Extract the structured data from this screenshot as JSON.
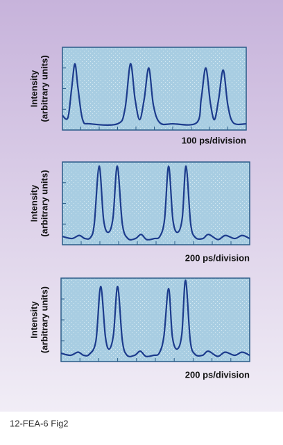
{
  "chart_data": [
    {
      "type": "line",
      "y_label": [
        "Intensity",
        "(arbitrary units)"
      ],
      "x_label": "100 ps/division",
      "color": "#1c3b8c",
      "xlim": [
        0,
        10
      ],
      "ylim": [
        0,
        4
      ],
      "x": [
        0,
        0.3,
        0.5,
        0.68,
        0.85,
        1.1,
        1.5,
        3.0,
        3.4,
        3.7,
        3.95,
        4.2,
        4.45,
        4.7,
        4.95,
        5.3,
        6,
        7.3,
        7.55,
        7.8,
        8.05,
        8.27,
        8.5,
        8.75,
        9,
        9.3,
        10
      ],
      "values": [
        0.7,
        0.6,
        2.0,
        3.2,
        2.0,
        0.5,
        0.3,
        0.3,
        1.0,
        3.2,
        1.5,
        0.5,
        1.5,
        3.0,
        1.2,
        0.35,
        0.3,
        0.35,
        1.5,
        3.0,
        1.3,
        0.5,
        1.5,
        2.9,
        1.2,
        0.35,
        0.3
      ]
    },
    {
      "type": "line",
      "y_label": [
        "Intensity",
        "(arbitrary units)"
      ],
      "x_label": "200 ps/division",
      "color": "#1c3b8c",
      "xlim": [
        0,
        10
      ],
      "ylim": [
        0,
        4
      ],
      "x": [
        0,
        0.5,
        0.9,
        1.2,
        1.5,
        1.7,
        1.96,
        2.2,
        2.45,
        2.7,
        2.93,
        3.2,
        3.5,
        3.9,
        4.2,
        4.5,
        4.9,
        5.2,
        5.45,
        5.67,
        5.9,
        6.15,
        6.4,
        6.6,
        6.85,
        7.1,
        7.5,
        7.8,
        8.3,
        8.7,
        9.2,
        9.6,
        10
      ],
      "values": [
        0.4,
        0.3,
        0.45,
        0.3,
        0.35,
        1.0,
        3.8,
        1.2,
        0.6,
        1.3,
        3.8,
        1.0,
        0.3,
        0.3,
        0.5,
        0.25,
        0.3,
        0.4,
        1.2,
        3.8,
        1.2,
        0.6,
        1.3,
        3.8,
        1.0,
        0.35,
        0.3,
        0.5,
        0.25,
        0.45,
        0.3,
        0.45,
        0.3
      ]
    },
    {
      "type": "line",
      "y_label": [
        "Intensity",
        "(arbitrary units)"
      ],
      "x_label": "200 ps/division",
      "color": "#1c3b8c",
      "xlim": [
        0,
        10
      ],
      "ylim": [
        0,
        4
      ],
      "x": [
        0,
        0.5,
        0.9,
        1.2,
        1.5,
        1.85,
        2.1,
        2.35,
        2.55,
        2.78,
        3.0,
        3.25,
        3.5,
        3.9,
        4.2,
        4.5,
        4.9,
        5.2,
        5.45,
        5.7,
        5.9,
        6.15,
        6.4,
        6.6,
        6.85,
        7.1,
        7.5,
        7.8,
        8.3,
        8.7,
        9.2,
        9.6,
        10
      ],
      "values": [
        0.4,
        0.3,
        0.45,
        0.3,
        0.35,
        1.0,
        3.6,
        1.2,
        0.6,
        1.3,
        3.6,
        1.0,
        0.3,
        0.3,
        0.5,
        0.25,
        0.3,
        0.4,
        1.2,
        3.5,
        1.2,
        0.6,
        1.3,
        3.9,
        1.0,
        0.35,
        0.3,
        0.5,
        0.25,
        0.45,
        0.3,
        0.45,
        0.3
      ]
    }
  ],
  "caption": "12-FEA-6 Fig2"
}
